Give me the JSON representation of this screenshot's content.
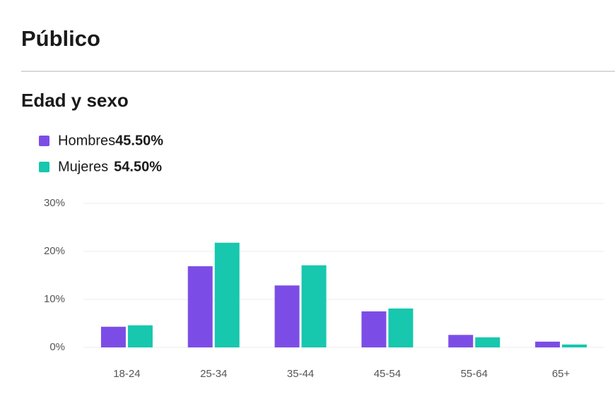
{
  "header": {
    "title": "Público"
  },
  "section": {
    "title": "Edad y sexo"
  },
  "chart_data": {
    "type": "bar",
    "categories": [
      "18-24",
      "25-34",
      "35-44",
      "45-54",
      "55-64",
      "65+"
    ],
    "series": [
      {
        "name": "Hombres",
        "share": "45.50%",
        "color": "#7c4de6",
        "values": [
          4.3,
          16.9,
          12.9,
          7.5,
          2.6,
          1.2
        ]
      },
      {
        "name": "Mujeres",
        "share": "54.50%",
        "color": "#17c7ae",
        "values": [
          4.6,
          21.8,
          17.1,
          8.1,
          2.1,
          0.6
        ]
      }
    ],
    "ylim": [
      0,
      30
    ],
    "yticks": [
      {
        "value": 0,
        "label": "0%"
      },
      {
        "value": 10,
        "label": "10%"
      },
      {
        "value": 20,
        "label": "20%"
      },
      {
        "value": 30,
        "label": "30%"
      }
    ],
    "grid": true
  }
}
